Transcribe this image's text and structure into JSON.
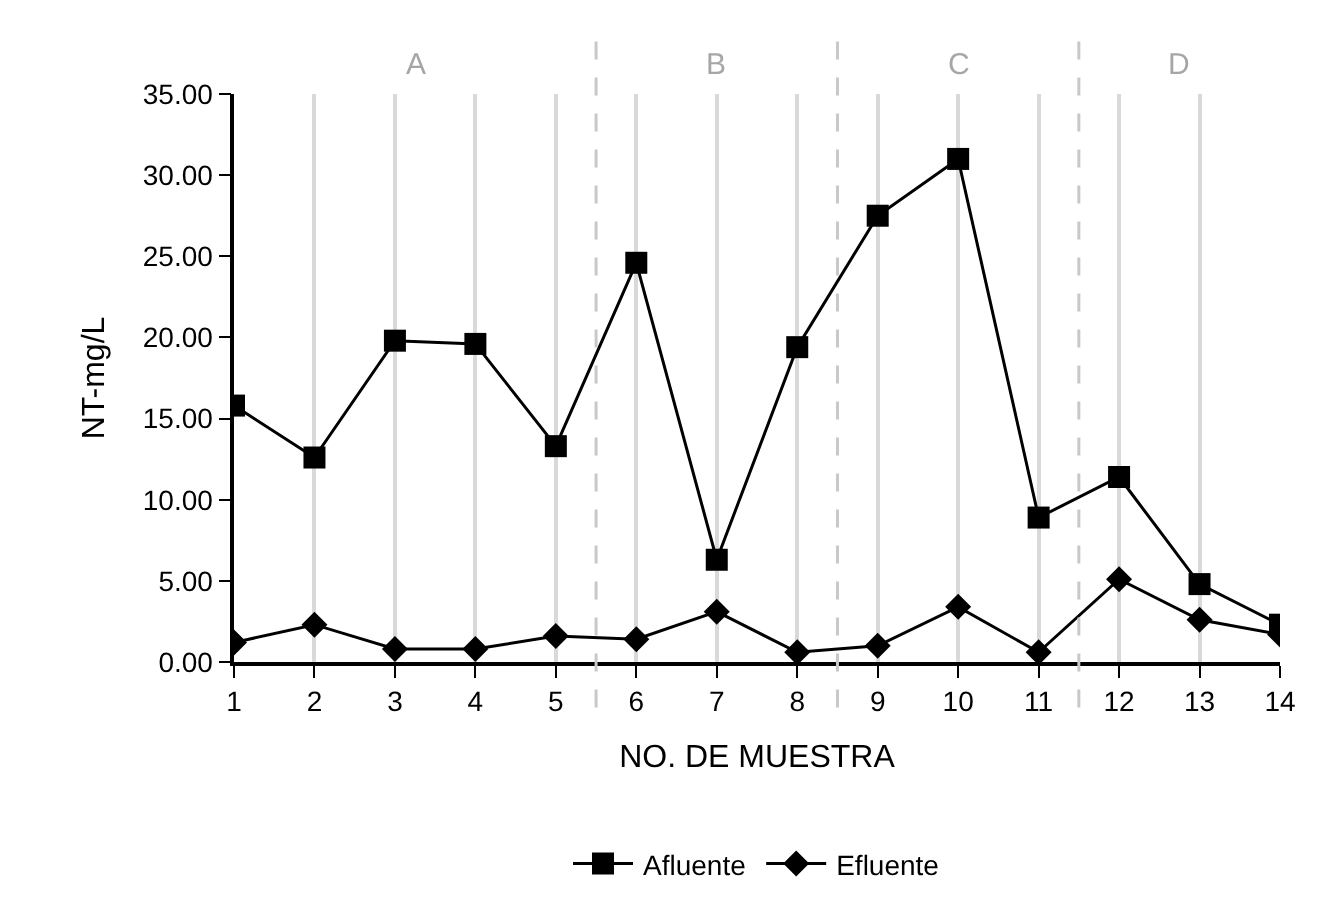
{
  "chart_data": {
    "type": "line",
    "xlabel": "NO. DE MUESTRA",
    "ylabel": "NT-mg/L",
    "x": [
      1,
      2,
      3,
      4,
      5,
      6,
      7,
      8,
      9,
      10,
      11,
      12,
      13,
      14
    ],
    "series": [
      {
        "name": "Afluente",
        "color": "#000000",
        "marker": "square",
        "values": [
          15.8,
          12.6,
          19.8,
          19.6,
          13.3,
          24.6,
          6.3,
          19.4,
          27.5,
          31.0,
          8.9,
          11.4,
          4.8,
          2.3
        ]
      },
      {
        "name": "Efluente",
        "color": "#000000",
        "marker": "diamond",
        "values": [
          1.2,
          2.3,
          0.8,
          0.8,
          1.6,
          1.4,
          3.1,
          0.6,
          1.0,
          3.4,
          0.6,
          5.1,
          2.6,
          1.7
        ]
      }
    ],
    "xlim": [
      1,
      14
    ],
    "xticks": [
      1,
      2,
      3,
      4,
      5,
      6,
      7,
      8,
      9,
      10,
      11,
      12,
      13,
      14
    ],
    "ylim": [
      0,
      35
    ],
    "yticks": [
      {
        "value": 0,
        "label": "0.00"
      },
      {
        "value": 5,
        "label": "5.00"
      },
      {
        "value": 10,
        "label": "10.00"
      },
      {
        "value": 15,
        "label": "15.00"
      },
      {
        "value": 20,
        "label": "20.00"
      },
      {
        "value": 25,
        "label": "25.00"
      },
      {
        "value": 30,
        "label": "30.00"
      },
      {
        "value": 35,
        "label": "35.00"
      }
    ],
    "ref_lines": [
      {
        "axis": "x",
        "value": 5.5,
        "color": "#c8c8c8",
        "line_style": "dashed"
      },
      {
        "axis": "x",
        "value": 8.5,
        "color": "#c8c8c8",
        "line_style": "dashed"
      },
      {
        "axis": "x",
        "value": 11.5,
        "color": "#c8c8c8",
        "line_style": "dashed"
      }
    ],
    "annotations": [
      "A",
      "B",
      "C",
      "D"
    ],
    "grid": "x",
    "legend": "bottom",
    "line_style": "solid"
  }
}
